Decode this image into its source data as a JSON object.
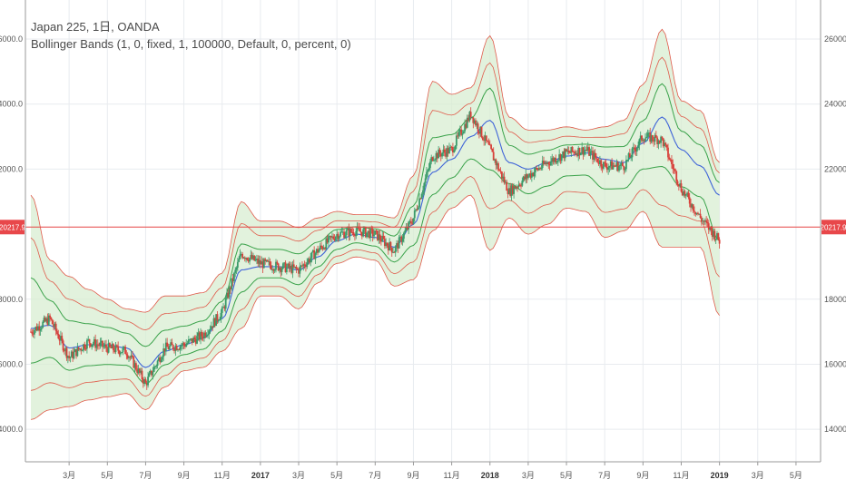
{
  "legend": {
    "line1": "Japan 225, 1日, OANDA",
    "line2": "Bollinger Bands (1, 0, fixed, 1, 100000, Default, 0, percent, 0)"
  },
  "colors": {
    "grid": "#e8ebef",
    "axis": "#9a9a9a",
    "price_line": "#e64545",
    "price_tag_bg": "#e8474a",
    "upper_band": "#e05a4a",
    "lower_band": "#e05a4a",
    "inner_band": "#3aa24a",
    "middle_band": "#3f64d8",
    "band_fill": "#d8eed2",
    "candle_up": "#3a9a6a",
    "candle_down": "#d8403a"
  },
  "chart_data": {
    "type": "line",
    "title": "Japan 225, 1日, OANDA",
    "ylim": [
      13000,
      27200
    ],
    "y_ticks": [
      {
        "value": 26000,
        "label": "26000.0"
      },
      {
        "value": 24000,
        "label": "24000.0"
      },
      {
        "value": 22000,
        "label": "22000.0"
      },
      {
        "value": 18000,
        "label": "18000.0"
      },
      {
        "value": 16000,
        "label": "16000.0"
      },
      {
        "value": 14000,
        "label": "14000.0"
      }
    ],
    "x_ticks": [
      {
        "index": 2,
        "label": "3月",
        "bold": false
      },
      {
        "index": 4,
        "label": "5月",
        "bold": false
      },
      {
        "index": 6,
        "label": "7月",
        "bold": false
      },
      {
        "index": 8,
        "label": "9月",
        "bold": false
      },
      {
        "index": 10,
        "label": "11月",
        "bold": false
      },
      {
        "index": 12,
        "label": "2017",
        "bold": true
      },
      {
        "index": 14,
        "label": "3月",
        "bold": false
      },
      {
        "index": 16,
        "label": "5月",
        "bold": false
      },
      {
        "index": 18,
        "label": "7月",
        "bold": false
      },
      {
        "index": 20,
        "label": "9月",
        "bold": false
      },
      {
        "index": 22,
        "label": "11月",
        "bold": false
      },
      {
        "index": 24,
        "label": "2018",
        "bold": true
      },
      {
        "index": 26,
        "label": "3月",
        "bold": false
      },
      {
        "index": 28,
        "label": "5月",
        "bold": false
      },
      {
        "index": 30,
        "label": "7月",
        "bold": false
      },
      {
        "index": 32,
        "label": "9月",
        "bold": false
      },
      {
        "index": 34,
        "label": "11月",
        "bold": false
      },
      {
        "index": 36,
        "label": "2019",
        "bold": true
      },
      {
        "index": 38,
        "label": "3月",
        "bold": false
      },
      {
        "index": 40,
        "label": "5月",
        "bold": false
      }
    ],
    "last_price": {
      "value": 20217.9,
      "label": "20217.9"
    },
    "data_end_index": 36.3,
    "series": [
      {
        "name": "price",
        "values": [
          17000,
          17400,
          16200,
          16700,
          16500,
          16400,
          15400,
          16500,
          16600,
          16900,
          17600,
          19400,
          19100,
          19000,
          18900,
          19500,
          20000,
          20100,
          20000,
          19500,
          20500,
          22400,
          22600,
          23700,
          22600,
          21300,
          21800,
          22200,
          22500,
          22600,
          22100,
          22100,
          23000,
          22900,
          21400,
          20500,
          19800
        ]
      },
      {
        "name": "middle",
        "values": [
          17100,
          17200,
          16500,
          16600,
          16600,
          16500,
          15900,
          16400,
          16600,
          16800,
          17400,
          18900,
          19000,
          19000,
          18900,
          19300,
          19800,
          20000,
          19900,
          19600,
          20300,
          21900,
          22300,
          23000,
          23500,
          22200,
          22000,
          22200,
          22400,
          22500,
          22300,
          22200,
          22800,
          23600,
          22600,
          22100,
          21200
        ]
      },
      {
        "name": "upper_band",
        "values": [
          21200,
          19200,
          18700,
          18300,
          18000,
          17700,
          17600,
          18100,
          18100,
          18200,
          18800,
          21000,
          20400,
          20400,
          20200,
          20500,
          20700,
          20600,
          20600,
          20500,
          21800,
          24700,
          24300,
          24500,
          26100,
          23600,
          23200,
          23200,
          23300,
          23200,
          23300,
          23500,
          24600,
          26300,
          24100,
          23800,
          22200
        ]
      },
      {
        "name": "lower_band",
        "values": [
          14300,
          14600,
          14700,
          14900,
          15000,
          15100,
          14600,
          15300,
          15800,
          15900,
          16400,
          17100,
          18100,
          18100,
          17700,
          18500,
          19100,
          19300,
          19200,
          18400,
          18600,
          20100,
          20800,
          21200,
          19500,
          20500,
          20000,
          20300,
          20800,
          20700,
          19900,
          20100,
          20700,
          19600,
          19600,
          19600,
          17500
        ]
      }
    ]
  }
}
